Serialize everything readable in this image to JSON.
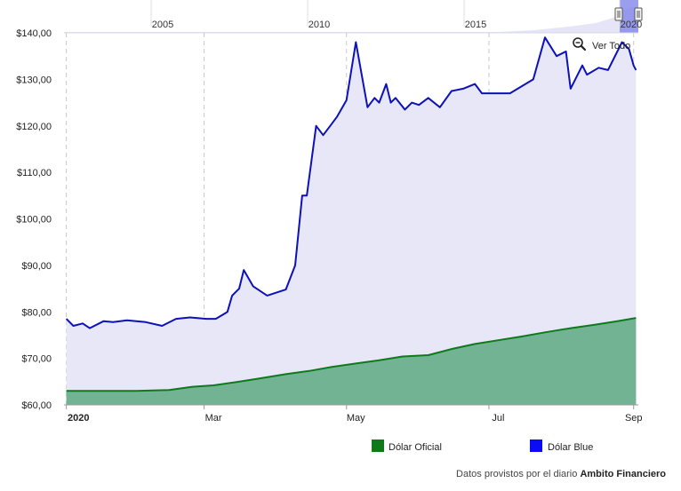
{
  "chart_data": {
    "type": "area",
    "x_start_label": "2020",
    "x_month_labels": [
      "Mar",
      "May",
      "Jul",
      "Sep"
    ],
    "y_ticks": [
      "$60,00",
      "$70,00",
      "$80,00",
      "$90,00",
      "$100,00",
      "$110,00",
      "$120,00",
      "$130,00",
      "$140,00"
    ],
    "ylim": [
      60,
      140
    ],
    "grid": "vertical dashed",
    "legend_position": "bottom",
    "series": [
      {
        "name": "Dólar Oficial",
        "color": "#0f7a1c",
        "fill": "#72b394",
        "x": [
          "2020-01-02",
          "2020-01-15",
          "2020-02-01",
          "2020-02-15",
          "2020-02-25",
          "2020-03-05",
          "2020-03-15",
          "2020-03-25",
          "2020-04-05",
          "2020-04-15",
          "2020-04-25",
          "2020-05-05",
          "2020-05-15",
          "2020-05-25",
          "2020-06-05",
          "2020-06-15",
          "2020-06-25",
          "2020-07-05",
          "2020-07-15",
          "2020-07-25",
          "2020-08-05",
          "2020-08-15",
          "2020-08-25",
          "2020-09-02"
        ],
        "values": [
          63.0,
          63.0,
          63.0,
          63.2,
          63.9,
          64.2,
          64.9,
          65.7,
          66.6,
          67.3,
          68.2,
          68.9,
          69.6,
          70.4,
          70.7,
          72.0,
          73.1,
          73.9,
          74.7,
          75.6,
          76.5,
          77.2,
          78.0,
          78.7
        ]
      },
      {
        "name": "Dólar Blue",
        "color": "#0d11b8",
        "fill": "#e7e7f8",
        "x": [
          "2020-01-02",
          "2020-01-05",
          "2020-01-09",
          "2020-01-12",
          "2020-01-18",
          "2020-01-22",
          "2020-01-28",
          "2020-02-05",
          "2020-02-12",
          "2020-02-18",
          "2020-02-24",
          "2020-03-02",
          "2020-03-06",
          "2020-03-11",
          "2020-03-13",
          "2020-03-16",
          "2020-03-18",
          "2020-03-22",
          "2020-03-28",
          "2020-04-05",
          "2020-04-09",
          "2020-04-12",
          "2020-04-14",
          "2020-04-18",
          "2020-04-21",
          "2020-04-24",
          "2020-04-27",
          "2020-05-01",
          "2020-05-05",
          "2020-05-10",
          "2020-05-13",
          "2020-05-15",
          "2020-05-18",
          "2020-05-20",
          "2020-05-22",
          "2020-05-26",
          "2020-05-29",
          "2020-06-01",
          "2020-06-05",
          "2020-06-10",
          "2020-06-15",
          "2020-06-20",
          "2020-06-25",
          "2020-06-28",
          "2020-07-01",
          "2020-07-10",
          "2020-07-20",
          "2020-07-25",
          "2020-07-30",
          "2020-08-03",
          "2020-08-05",
          "2020-08-10",
          "2020-08-12",
          "2020-08-17",
          "2020-08-21",
          "2020-08-27",
          "2020-08-30",
          "2020-09-01",
          "2020-09-02"
        ],
        "values": [
          78.5,
          77.0,
          77.5,
          76.5,
          78.0,
          77.8,
          78.2,
          77.8,
          77.0,
          78.5,
          78.8,
          78.5,
          78.5,
          80.0,
          83.5,
          85.0,
          89.0,
          85.5,
          83.5,
          84.8,
          90.0,
          105.0,
          105.0,
          120.0,
          118.0,
          120.0,
          122.0,
          125.5,
          138.0,
          124.0,
          126.0,
          125.0,
          129.0,
          125.0,
          126.0,
          123.5,
          125.0,
          124.5,
          126.0,
          124.0,
          127.5,
          128.0,
          129.0,
          127.0,
          127.0,
          127.0,
          130.0,
          139.0,
          135.0,
          136.0,
          128.0,
          133.0,
          131.0,
          132.5,
          132.0,
          138.0,
          136.5,
          133.0,
          132.0
        ]
      }
    ],
    "navigator": {
      "year_labels": [
        "2005",
        "2010",
        "2015",
        "2020"
      ]
    },
    "zoom_button": {
      "icon": "zoom-out-icon",
      "label": "Ver Todo"
    },
    "credit": {
      "prefix": "Datos provistos por el diario",
      "source": "Ambito Financiero"
    }
  }
}
